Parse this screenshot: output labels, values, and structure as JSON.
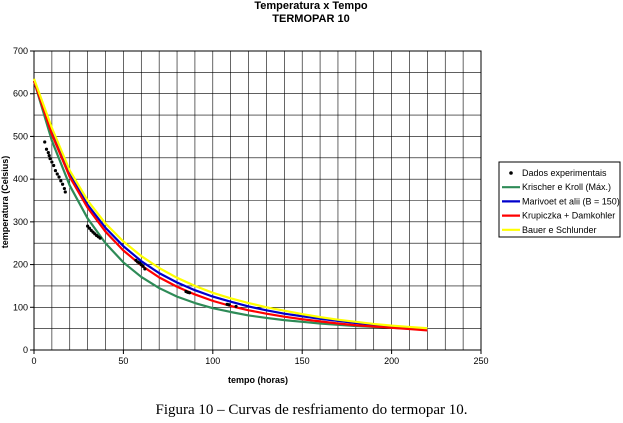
{
  "caption": "Figura 10 – Curvas de resfriamento do termopar 10.",
  "chart_data": {
    "type": "line",
    "title": "Temperatura x Tempo",
    "subtitle": "TERMOPAR 10",
    "xlabel": "tempo (horas)",
    "ylabel": "temperatura (Celsius)",
    "xlim": [
      0,
      250
    ],
    "ylim": [
      0,
      700
    ],
    "x_ticks": [
      0,
      50,
      100,
      150,
      200,
      250
    ],
    "y_ticks": [
      0,
      100,
      200,
      300,
      400,
      500,
      600,
      700
    ],
    "x_minor_step": 10,
    "y_minor_step": 50,
    "grid": true,
    "legend_position": "right",
    "series": [
      {
        "name": "Dados experimentais",
        "kind": "scatter",
        "color": "#000000",
        "points": [
          [
            6,
            487
          ],
          [
            7,
            470
          ],
          [
            8,
            462
          ],
          [
            8.5,
            455
          ],
          [
            9,
            448
          ],
          [
            10,
            440
          ],
          [
            11,
            432
          ],
          [
            12,
            420
          ],
          [
            13,
            412
          ],
          [
            14,
            405
          ],
          [
            15,
            396
          ],
          [
            16,
            388
          ],
          [
            17,
            378
          ],
          [
            17.5,
            370
          ],
          [
            30,
            290
          ],
          [
            31,
            285
          ],
          [
            32,
            280
          ],
          [
            33,
            276
          ],
          [
            34,
            272
          ],
          [
            35,
            268
          ],
          [
            36,
            265
          ],
          [
            37,
            262
          ],
          [
            57,
            210
          ],
          [
            58,
            206
          ],
          [
            59,
            204
          ],
          [
            60,
            200
          ],
          [
            61,
            196
          ],
          [
            62,
            190
          ],
          [
            85,
            137
          ],
          [
            86,
            135
          ],
          [
            87,
            134
          ],
          [
            108,
            107
          ],
          [
            109,
            106
          ],
          [
            113,
            102
          ]
        ]
      },
      {
        "name": "Krischer e Kroll (Máx.)",
        "kind": "line",
        "color": "#2e8b57",
        "x": [
          0,
          10,
          20,
          30,
          40,
          50,
          60,
          70,
          80,
          90,
          100,
          110,
          120,
          130,
          140,
          150,
          160,
          170,
          180,
          190,
          200,
          210,
          220
        ],
        "values": [
          630,
          490,
          385,
          308,
          250,
          205,
          171,
          145,
          125,
          110,
          98,
          89,
          81,
          75,
          70,
          66,
          62,
          59,
          56,
          54,
          52,
          50,
          48
        ]
      },
      {
        "name": "Marivoet et alii (B = 150)",
        "kind": "line",
        "color": "#0000cc",
        "x": [
          0,
          10,
          20,
          30,
          40,
          50,
          60,
          70,
          80,
          90,
          100,
          110,
          120,
          130,
          140,
          150,
          160,
          170,
          180,
          190,
          200,
          210,
          220
        ],
        "values": [
          630,
          510,
          410,
          340,
          286,
          243,
          208,
          180,
          158,
          140,
          125,
          113,
          102,
          93,
          85,
          79,
          73,
          68,
          63,
          59,
          55,
          51,
          48
        ]
      },
      {
        "name": "Krupiczka + Damkohler",
        "kind": "line",
        "color": "#ff0000",
        "x": [
          0,
          10,
          20,
          30,
          40,
          50,
          60,
          70,
          80,
          90,
          100,
          110,
          120,
          130,
          140,
          150,
          160,
          170,
          180,
          190,
          200,
          210,
          220
        ],
        "values": [
          630,
          505,
          405,
          333,
          277,
          233,
          198,
          170,
          148,
          130,
          115,
          103,
          93,
          85,
          78,
          72,
          67,
          62,
          58,
          55,
          52,
          49,
          46
        ]
      },
      {
        "name": "Bauer e Schlunder",
        "kind": "line",
        "color": "#ffff00",
        "x": [
          0,
          10,
          20,
          30,
          40,
          50,
          60,
          70,
          80,
          90,
          100,
          110,
          120,
          130,
          140,
          150,
          160,
          170,
          180,
          190,
          200,
          210,
          220
        ],
        "values": [
          635,
          520,
          420,
          350,
          296,
          254,
          220,
          192,
          169,
          150,
          134,
          121,
          110,
          100,
          92,
          84,
          77,
          71,
          66,
          61,
          57,
          54,
          51
        ]
      }
    ]
  }
}
